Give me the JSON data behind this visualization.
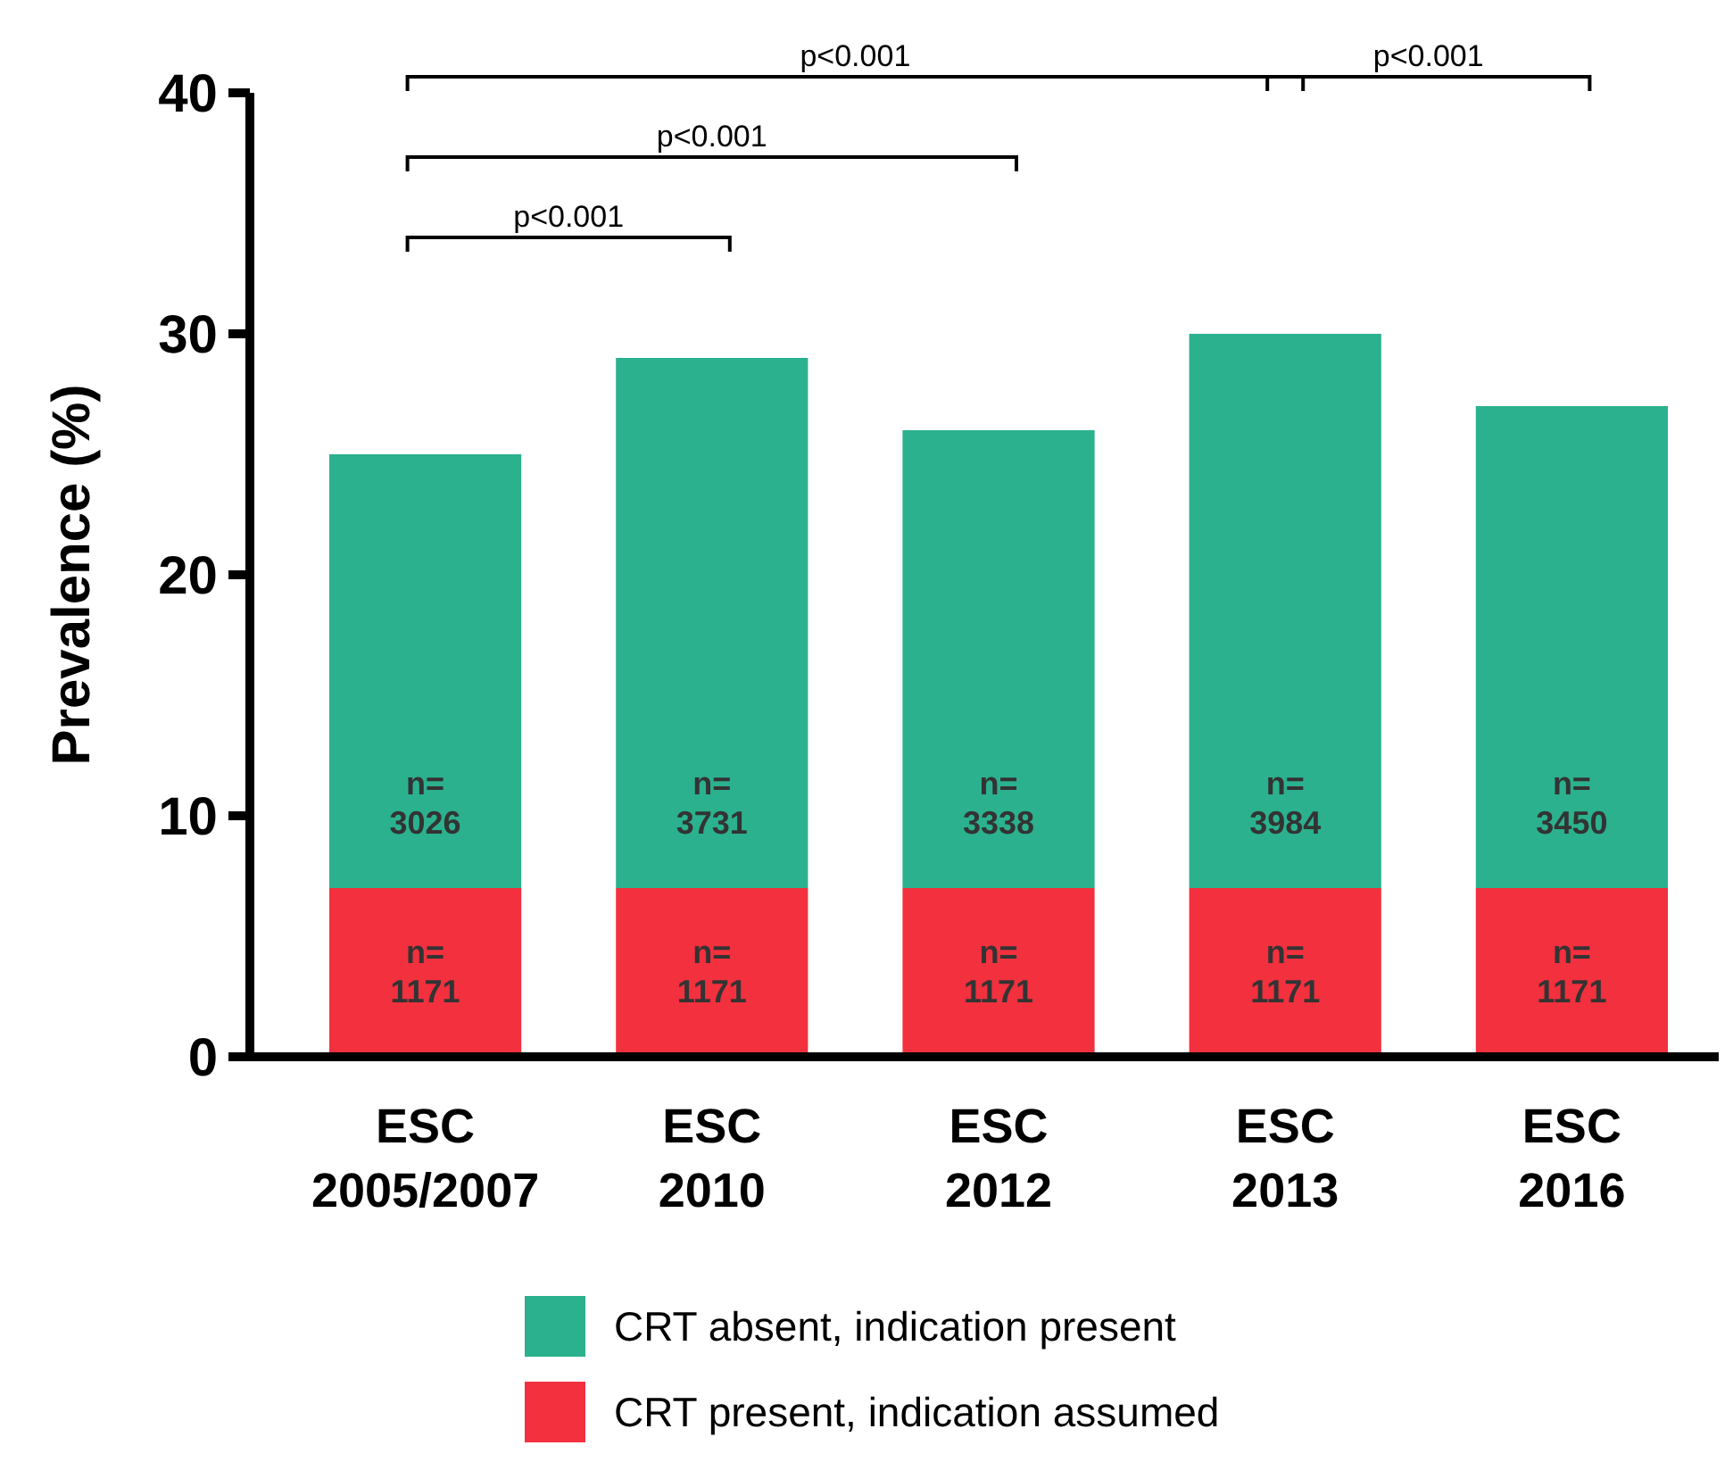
{
  "chart_data": {
    "type": "bar",
    "stacked": true,
    "ylabel": "Prevalence (%)",
    "categories": [
      "ESC 2005/2007",
      "ESC 2010",
      "ESC 2012",
      "ESC 2013",
      "ESC 2016"
    ],
    "series": [
      {
        "name": "CRT present, indication assumed",
        "color": "#f2303e",
        "values": [
          7,
          7,
          7,
          7,
          7
        ]
      },
      {
        "name": "CRT absent, indication present",
        "color": "#2bb18e",
        "values": [
          18,
          22,
          19,
          23,
          20
        ]
      }
    ],
    "ylim": [
      0,
      40
    ],
    "yticks": [
      0,
      10,
      20,
      30,
      40
    ],
    "grid": false,
    "legend": "bottom",
    "annotations": [
      "p<0.001",
      "p<0.001",
      "p<0.001",
      "p<0.001",
      "n=\n1171",
      "n=\n1171",
      "n=\n1171",
      "n=\n1171",
      "n=\n1171",
      "n=\n3026",
      "n=\n3731",
      "n=\n3338",
      "n=\n3984",
      "n=\n3450"
    ]
  }
}
